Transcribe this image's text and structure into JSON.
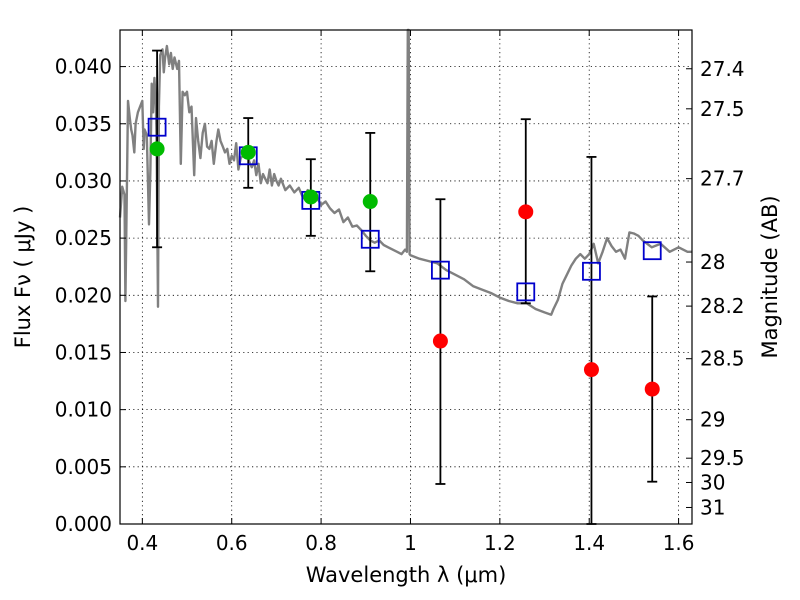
{
  "chart_data": {
    "type": "scatter",
    "title": "",
    "xlabel": "Wavelength  λ (μm)",
    "ylabel": "Flux  Fν  ( μJy )",
    "ylabel_right": "Magnitude (AB)",
    "xlim": [
      0.35,
      1.63
    ],
    "ylim": [
      0.0,
      0.0432
    ],
    "grid": true,
    "x_ticks": [
      0.4,
      0.6,
      0.8,
      1.0,
      1.2,
      1.4,
      1.6
    ],
    "x_tick_labels": [
      "0.4",
      "0.6",
      "0.8",
      "1",
      "1.2",
      "1.4",
      "1.6"
    ],
    "y_ticks": [
      0.0,
      0.005,
      0.01,
      0.015,
      0.02,
      0.025,
      0.03,
      0.035,
      0.04
    ],
    "y_tick_labels": [
      "0.000",
      "0.005",
      "0.010",
      "0.015",
      "0.020",
      "0.025",
      "0.030",
      "0.035",
      "0.040"
    ],
    "right_ticks": [
      {
        "mag": 27.4,
        "label": "27.4"
      },
      {
        "mag": 27.5,
        "label": "27.5"
      },
      {
        "mag": 27.7,
        "label": "27.7"
      },
      {
        "mag": 28.0,
        "label": "28"
      },
      {
        "mag": 28.2,
        "label": "28.2"
      },
      {
        "mag": 28.5,
        "label": "28.5"
      },
      {
        "mag": 29.0,
        "label": "29"
      },
      {
        "mag": 29.5,
        "label": "29.5"
      },
      {
        "mag": 30.0,
        "label": "30"
      },
      {
        "mag": 31.0,
        "label": "31"
      }
    ],
    "colors": {
      "model": "#808080",
      "model_points": "#0000cc",
      "detections": "#00bb00",
      "upper_limits": "#ff0000",
      "errorbars": "#000000"
    },
    "model_spectrum": [
      [
        0.35,
        0.0268
      ],
      [
        0.355,
        0.0295
      ],
      [
        0.36,
        0.0288
      ],
      [
        0.362,
        0.0195
      ],
      [
        0.366,
        0.0315
      ],
      [
        0.368,
        0.037
      ],
      [
        0.372,
        0.0355
      ],
      [
        0.375,
        0.0345
      ],
      [
        0.378,
        0.034
      ],
      [
        0.382,
        0.0325
      ],
      [
        0.385,
        0.035
      ],
      [
        0.39,
        0.036
      ],
      [
        0.395,
        0.0365
      ],
      [
        0.4,
        0.037
      ],
      [
        0.403,
        0.0328
      ],
      [
        0.405,
        0.0345
      ],
      [
        0.41,
        0.034
      ],
      [
        0.415,
        0.0262
      ],
      [
        0.418,
        0.031
      ],
      [
        0.421,
        0.0385
      ],
      [
        0.424,
        0.036
      ],
      [
        0.427,
        0.039
      ],
      [
        0.43,
        0.037
      ],
      [
        0.432,
        0.0335
      ],
      [
        0.435,
        0.019
      ],
      [
        0.437,
        0.0365
      ],
      [
        0.44,
        0.041
      ],
      [
        0.445,
        0.0415
      ],
      [
        0.448,
        0.0395
      ],
      [
        0.451,
        0.0408
      ],
      [
        0.455,
        0.0418
      ],
      [
        0.46,
        0.0402
      ],
      [
        0.464,
        0.0412
      ],
      [
        0.468,
        0.0398
      ],
      [
        0.472,
        0.0408
      ],
      [
        0.478,
        0.0398
      ],
      [
        0.482,
        0.0405
      ],
      [
        0.486,
        0.0315
      ],
      [
        0.49,
        0.0378
      ],
      [
        0.495,
        0.0375
      ],
      [
        0.5,
        0.0378
      ],
      [
        0.505,
        0.036
      ],
      [
        0.51,
        0.0365
      ],
      [
        0.516,
        0.0305
      ],
      [
        0.52,
        0.0355
      ],
      [
        0.525,
        0.0335
      ],
      [
        0.53,
        0.032
      ],
      [
        0.535,
        0.0342
      ],
      [
        0.54,
        0.035
      ],
      [
        0.545,
        0.033
      ],
      [
        0.55,
        0.0328
      ],
      [
        0.555,
        0.0335
      ],
      [
        0.56,
        0.0315
      ],
      [
        0.566,
        0.0335
      ],
      [
        0.57,
        0.0345
      ],
      [
        0.575,
        0.0335
      ],
      [
        0.58,
        0.033
      ],
      [
        0.585,
        0.0325
      ],
      [
        0.59,
        0.0328
      ],
      [
        0.595,
        0.0315
      ],
      [
        0.6,
        0.0322
      ],
      [
        0.605,
        0.0318
      ],
      [
        0.61,
        0.0333
      ],
      [
        0.615,
        0.031
      ],
      [
        0.62,
        0.032
      ],
      [
        0.625,
        0.0322
      ],
      [
        0.63,
        0.0325
      ],
      [
        0.635,
        0.0322
      ],
      [
        0.64,
        0.0316
      ],
      [
        0.645,
        0.0312
      ],
      [
        0.65,
        0.0318
      ],
      [
        0.655,
        0.0305
      ],
      [
        0.66,
        0.0315
      ],
      [
        0.665,
        0.0298
      ],
      [
        0.67,
        0.0306
      ],
      [
        0.675,
        0.0302
      ],
      [
        0.68,
        0.0298
      ],
      [
        0.685,
        0.031
      ],
      [
        0.69,
        0.0296
      ],
      [
        0.695,
        0.0306
      ],
      [
        0.7,
        0.03
      ],
      [
        0.705,
        0.0296
      ],
      [
        0.71,
        0.0302
      ],
      [
        0.72,
        0.0292
      ],
      [
        0.73,
        0.0296
      ],
      [
        0.74,
        0.029
      ],
      [
        0.75,
        0.0294
      ],
      [
        0.76,
        0.0285
      ],
      [
        0.77,
        0.0292
      ],
      [
        0.78,
        0.0283
      ],
      [
        0.79,
        0.0286
      ],
      [
        0.8,
        0.0279
      ],
      [
        0.81,
        0.0282
      ],
      [
        0.82,
        0.0276
      ],
      [
        0.83,
        0.0272
      ],
      [
        0.84,
        0.0275
      ],
      [
        0.85,
        0.0264
      ],
      [
        0.86,
        0.0268
      ],
      [
        0.87,
        0.026
      ],
      [
        0.88,
        0.0261
      ],
      [
        0.89,
        0.0257
      ],
      [
        0.9,
        0.0252
      ],
      [
        0.91,
        0.0248
      ],
      [
        0.92,
        0.0246
      ],
      [
        0.93,
        0.0248
      ],
      [
        0.94,
        0.0244
      ],
      [
        0.95,
        0.0242
      ],
      [
        0.96,
        0.024
      ],
      [
        0.97,
        0.0238
      ],
      [
        0.98,
        0.0236
      ],
      [
        0.988,
        0.024
      ],
      [
        0.992,
        0.0238
      ],
      [
        0.994,
        0.0432
      ],
      [
        0.996,
        0.0432
      ],
      [
        0.998,
        0.0236
      ],
      [
        1.0,
        0.0235
      ],
      [
        1.02,
        0.0232
      ],
      [
        1.04,
        0.023
      ],
      [
        1.06,
        0.0228
      ],
      [
        1.08,
        0.0222
      ],
      [
        1.1,
        0.0218
      ],
      [
        1.12,
        0.0214
      ],
      [
        1.14,
        0.0208
      ],
      [
        1.16,
        0.0205
      ],
      [
        1.18,
        0.0202
      ],
      [
        1.2,
        0.0198
      ],
      [
        1.22,
        0.0195
      ],
      [
        1.24,
        0.0193
      ],
      [
        1.26,
        0.0193
      ],
      [
        1.28,
        0.0188
      ],
      [
        1.3,
        0.0185
      ],
      [
        1.315,
        0.0183
      ],
      [
        1.32,
        0.0188
      ],
      [
        1.33,
        0.0196
      ],
      [
        1.34,
        0.021
      ],
      [
        1.35,
        0.0218
      ],
      [
        1.36,
        0.0226
      ],
      [
        1.37,
        0.0232
      ],
      [
        1.38,
        0.0236
      ],
      [
        1.39,
        0.0232
      ],
      [
        1.4,
        0.0236
      ],
      [
        1.41,
        0.0245
      ],
      [
        1.42,
        0.0228
      ],
      [
        1.43,
        0.0238
      ],
      [
        1.44,
        0.025
      ],
      [
        1.45,
        0.0243
      ],
      [
        1.46,
        0.0238
      ],
      [
        1.47,
        0.024
      ],
      [
        1.48,
        0.0232
      ],
      [
        1.49,
        0.0255
      ],
      [
        1.5,
        0.0254
      ],
      [
        1.51,
        0.0252
      ],
      [
        1.52,
        0.0248
      ],
      [
        1.54,
        0.0242
      ],
      [
        1.56,
        0.0245
      ],
      [
        1.58,
        0.0238
      ],
      [
        1.6,
        0.0242
      ],
      [
        1.62,
        0.0238
      ],
      [
        1.63,
        0.0238
      ]
    ],
    "model_points": {
      "x": [
        0.433,
        0.637,
        0.777,
        0.91,
        1.067,
        1.258,
        1.405,
        1.541
      ],
      "y": [
        0.0347,
        0.0322,
        0.0283,
        0.0249,
        0.0222,
        0.0203,
        0.0221,
        0.0239
      ]
    },
    "detections": [
      {
        "x": 0.433,
        "y": 0.0328,
        "err_low": 0.0242,
        "err_high": 0.0414
      },
      {
        "x": 0.637,
        "y": 0.0325,
        "err_low": 0.0294,
        "err_high": 0.0355
      },
      {
        "x": 0.777,
        "y": 0.0286,
        "err_low": 0.0252,
        "err_high": 0.0319
      },
      {
        "x": 0.91,
        "y": 0.0282,
        "err_low": 0.0221,
        "err_high": 0.0342
      }
    ],
    "upper_limits": [
      {
        "x": 1.067,
        "y": 0.016,
        "err_low": 0.0035,
        "err_high": 0.0284
      },
      {
        "x": 1.258,
        "y": 0.0273,
        "err_low": 0.0193,
        "err_high": 0.0354
      },
      {
        "x": 1.405,
        "y": 0.0135,
        "err_low": 0.0,
        "err_high": 0.0321
      },
      {
        "x": 1.541,
        "y": 0.0118,
        "err_low": 0.0037,
        "err_high": 0.0199
      }
    ]
  }
}
